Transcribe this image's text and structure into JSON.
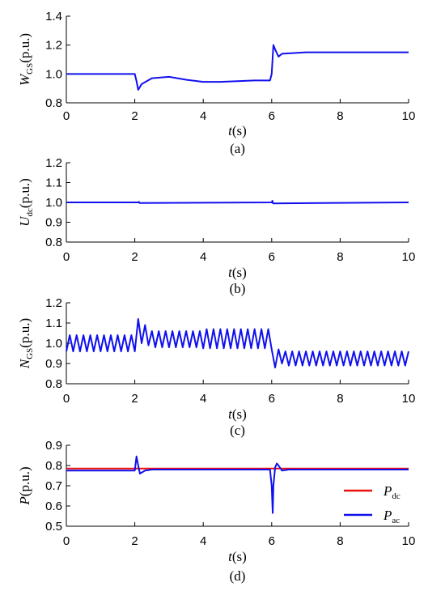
{
  "chart_data": [
    {
      "type": "line",
      "caption": "(a)",
      "ylabel": {
        "main": "W",
        "sub": "GS",
        "unit": "(p.u.)"
      },
      "xlabel": {
        "main": "t",
        "unit": "(s)"
      },
      "xlim": [
        0,
        10
      ],
      "xticks": [
        0,
        2,
        4,
        6,
        8,
        10
      ],
      "ylim": [
        0.8,
        1.4
      ],
      "yticks": [
        0.8,
        {
          "value": 1,
          "label": "1.0"
        },
        1.2,
        1.4
      ],
      "x": [
        0,
        2,
        2.05,
        2.1,
        2.2,
        2.5,
        3,
        3.5,
        4,
        4.5,
        5,
        5.5,
        5.95,
        6,
        6.05,
        6.1,
        6.2,
        6.3,
        7,
        8,
        9,
        10
      ],
      "series": [
        {
          "color": "#1010ee",
          "values": [
            1,
            1,
            0.95,
            0.89,
            0.93,
            0.97,
            0.98,
            0.96,
            0.945,
            0.945,
            0.95,
            0.955,
            0.955,
            1,
            1.2,
            1.17,
            1.12,
            1.14,
            1.15,
            1.15,
            1.15,
            1.15
          ]
        }
      ]
    },
    {
      "type": "line",
      "caption": "(b)",
      "ylabel": {
        "main": "U",
        "sub": "dc",
        "unit": "(p.u.)"
      },
      "xlabel": {
        "main": "t",
        "unit": "(s)"
      },
      "xlim": [
        0,
        10
      ],
      "xticks": [
        0,
        2,
        4,
        6,
        8,
        10
      ],
      "ylim": [
        0.8,
        1.2
      ],
      "yticks": [
        0.8,
        0.9,
        {
          "value": 1,
          "label": "1.0"
        },
        1.1,
        1.2
      ],
      "x": [
        0,
        2.1,
        2.12,
        2.14,
        6,
        6.02,
        6.04,
        10
      ],
      "series": [
        {
          "color": "#1010ee",
          "values": [
            1,
            1,
            1.003,
            0.997,
            1,
            1.008,
            0.995,
            1
          ]
        }
      ]
    },
    {
      "type": "line",
      "caption": "(c)",
      "ylabel": {
        "main": "N",
        "sub": "GS",
        "unit": "(p.u.)"
      },
      "xlabel": {
        "main": "t",
        "unit": "(s)"
      },
      "xlim": [
        0,
        10
      ],
      "xticks": [
        0,
        2,
        4,
        6,
        8,
        10
      ],
      "ylim": [
        0.8,
        1.2
      ],
      "yticks": [
        0.8,
        0.9,
        {
          "value": 1,
          "label": "1.0"
        },
        1.1,
        1.2
      ],
      "x": [
        0,
        0.1,
        0.2,
        0.3,
        0.4,
        0.5,
        0.6,
        0.7,
        0.8,
        0.9,
        1,
        1.1,
        1.2,
        1.3,
        1.4,
        1.5,
        1.6,
        1.7,
        1.8,
        1.9,
        2,
        2.1,
        2.2,
        2.3,
        2.4,
        2.5,
        2.6,
        2.7,
        2.8,
        2.9,
        3,
        3.1,
        3.2,
        3.3,
        3.4,
        3.5,
        3.6,
        3.7,
        3.8,
        3.9,
        4,
        4.1,
        4.2,
        4.3,
        4.4,
        4.5,
        4.6,
        4.7,
        4.8,
        4.9,
        5,
        5.1,
        5.2,
        5.3,
        5.4,
        5.5,
        5.6,
        5.7,
        5.8,
        5.9,
        6,
        6.1,
        6.2,
        6.3,
        6.4,
        6.5,
        6.6,
        6.7,
        6.8,
        6.9,
        7,
        7.1,
        7.2,
        7.3,
        7.4,
        7.5,
        7.6,
        7.7,
        7.8,
        7.9,
        8,
        8.1,
        8.2,
        8.3,
        8.4,
        8.5,
        8.6,
        8.7,
        8.8,
        8.9,
        9,
        9.1,
        9.2,
        9.3,
        9.4,
        9.5,
        9.6,
        9.7,
        9.8,
        9.9,
        10
      ],
      "series": [
        {
          "color": "#1010ee",
          "values": [
            0.96,
            1.04,
            0.96,
            1.04,
            0.96,
            1.04,
            0.96,
            1.04,
            0.96,
            1.04,
            0.96,
            1.04,
            0.96,
            1.04,
            0.96,
            1.04,
            0.96,
            1.04,
            0.96,
            1.04,
            0.96,
            1.12,
            1,
            1.09,
            0.99,
            1.06,
            0.98,
            1.06,
            0.98,
            1.06,
            0.98,
            1.06,
            0.98,
            1.06,
            0.98,
            1.06,
            0.98,
            1.06,
            0.98,
            1.06,
            0.975,
            1.07,
            0.975,
            1.07,
            0.975,
            1.07,
            0.975,
            1.07,
            0.975,
            1.07,
            0.975,
            1.07,
            0.975,
            1.07,
            0.975,
            1.07,
            0.975,
            1.07,
            0.975,
            1.07,
            0.97,
            0.88,
            0.97,
            0.9,
            0.96,
            0.89,
            0.96,
            0.89,
            0.96,
            0.89,
            0.96,
            0.89,
            0.96,
            0.89,
            0.96,
            0.89,
            0.96,
            0.89,
            0.96,
            0.89,
            0.96,
            0.89,
            0.96,
            0.89,
            0.96,
            0.89,
            0.96,
            0.89,
            0.96,
            0.89,
            0.96,
            0.89,
            0.96,
            0.89,
            0.96,
            0.89,
            0.96,
            0.89,
            0.96,
            0.89,
            0.96
          ]
        }
      ]
    },
    {
      "type": "line",
      "caption": "(d)",
      "ylabel": {
        "main": "P",
        "unit": "(p.u.)"
      },
      "xlabel": {
        "main": "t",
        "unit": "(s)"
      },
      "xlim": [
        0,
        10
      ],
      "xticks": [
        0,
        2,
        4,
        6,
        8,
        10
      ],
      "ylim": [
        0.5,
        0.9
      ],
      "yticks": [
        0.5,
        0.6,
        0.7,
        0.8,
        0.9
      ],
      "legend": "lower right",
      "series": [
        {
          "name": "P",
          "name_sub": "dc",
          "color": "#ee1010",
          "x": [
            0,
            10
          ],
          "values": [
            0.785,
            0.785
          ]
        },
        {
          "name": "P",
          "name_sub": "ac",
          "color": "#1010ee",
          "x": [
            0,
            2,
            2.05,
            2.1,
            2.15,
            2.2,
            2.3,
            2.5,
            5.95,
            6,
            6.03,
            6.05,
            6.1,
            6.15,
            6.2,
            6.3,
            6.5,
            10
          ],
          "values": [
            0.775,
            0.775,
            0.845,
            0.8,
            0.76,
            0.765,
            0.775,
            0.78,
            0.78,
            0.7,
            0.565,
            0.7,
            0.79,
            0.81,
            0.8,
            0.775,
            0.78,
            0.78
          ]
        }
      ]
    }
  ]
}
